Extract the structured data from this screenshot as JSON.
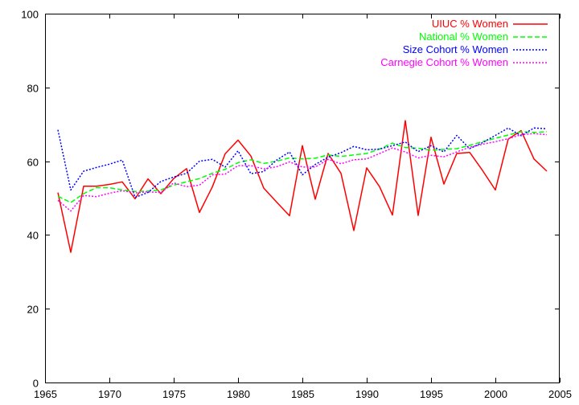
{
  "chart_data": {
    "type": "line",
    "title": "",
    "xlabel": "",
    "ylabel": "",
    "xlim": [
      1965,
      2005
    ],
    "ylim": [
      0,
      100
    ],
    "xticks": [
      1965,
      1970,
      1975,
      1980,
      1985,
      1990,
      1995,
      2000,
      2005
    ],
    "yticks": [
      0,
      20,
      40,
      60,
      80,
      100
    ],
    "grid": false,
    "legend_position": "top-right",
    "x": [
      1966,
      1967,
      1968,
      1969,
      1970,
      1971,
      1972,
      1973,
      1974,
      1975,
      1976,
      1977,
      1978,
      1979,
      1980,
      1981,
      1982,
      1983,
      1984,
      1985,
      1986,
      1987,
      1988,
      1989,
      1990,
      1991,
      1992,
      1993,
      1994,
      1995,
      1996,
      1997,
      1998,
      1999,
      2000,
      2001,
      2002,
      2003,
      2004
    ],
    "series": [
      {
        "name": "UIUC % Women",
        "color": "#ff0000",
        "dash": "solid",
        "values": [
          51.5,
          35.3,
          53.2,
          53.2,
          53.7,
          54.4,
          49.8,
          55.2,
          51.2,
          55.3,
          58.0,
          46.1,
          53.0,
          62.0,
          65.7,
          61.4,
          52.7,
          48.9,
          45.2,
          64.2,
          49.7,
          62.1,
          56.7,
          41.2,
          58.2,
          53.1,
          45.4,
          71.0,
          45.3,
          66.5,
          53.8,
          62.1,
          62.4,
          57.5,
          52.2,
          66.0,
          68.3,
          60.6,
          57.3
        ]
      },
      {
        "name": "National % Women",
        "color": "#00ff00",
        "dash": "dashed",
        "values": [
          50.5,
          48.8,
          51.2,
          52.8,
          52.8,
          52.2,
          51.8,
          51.9,
          52.2,
          53.5,
          54.4,
          55.3,
          56.7,
          57.8,
          59.6,
          60.4,
          59.4,
          60.0,
          60.9,
          60.6,
          60.8,
          61.7,
          61.3,
          61.7,
          62.1,
          63.3,
          64.9,
          63.7,
          63.5,
          63.0,
          63.2,
          63.4,
          64.3,
          65.3,
          66.2,
          67.1,
          68.0,
          67.8,
          68.0
        ]
      },
      {
        "name": "Size Cohort % Women",
        "color": "#0000ff",
        "dash": "dotted",
        "values": [
          68.5,
          52.2,
          57.3,
          58.3,
          59.2,
          60.3,
          50.2,
          51.5,
          54.5,
          55.7,
          56.7,
          60.0,
          60.5,
          58.4,
          62.8,
          56.6,
          57.2,
          60.3,
          62.5,
          56.3,
          59.1,
          61.1,
          62.3,
          64.0,
          63.1,
          63.3,
          64.2,
          65.2,
          62.6,
          64.2,
          62.5,
          67.0,
          63.4,
          65.0,
          67.0,
          69.0,
          66.9,
          69.0,
          68.8
        ]
      },
      {
        "name": "Carnegie Cohort % Women",
        "color": "#ff00ff",
        "dash": "dotted",
        "values": [
          49.4,
          46.5,
          50.7,
          50.4,
          51.3,
          52.0,
          51.4,
          51.7,
          51.5,
          54.1,
          53.1,
          53.5,
          56.3,
          56.5,
          58.8,
          58.8,
          57.9,
          58.5,
          59.8,
          58.4,
          58.4,
          60.5,
          59.3,
          60.4,
          60.6,
          62.1,
          63.6,
          62.5,
          60.9,
          61.6,
          61.2,
          62.5,
          63.8,
          64.6,
          65.3,
          66.1,
          67.2,
          67.5,
          67.2
        ]
      }
    ]
  }
}
